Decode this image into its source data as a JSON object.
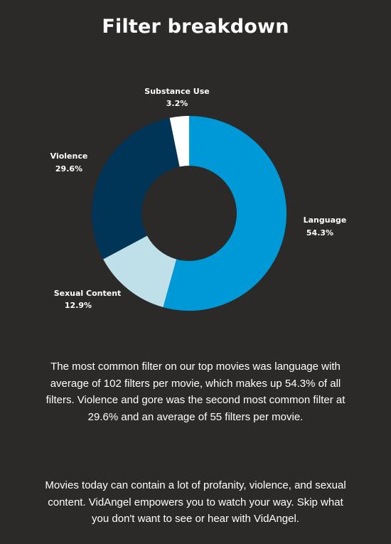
{
  "title": "Filter breakdown",
  "chart_data": {
    "type": "pie",
    "title": "Filter breakdown",
    "slices": [
      {
        "name": "Language",
        "pct_label": "54.3%",
        "value": 54.3,
        "color": "#0099d8"
      },
      {
        "name": "Sexual Content",
        "pct_label": "12.9%",
        "value": 12.9,
        "color": "#bfe0e9"
      },
      {
        "name": "Violence",
        "pct_label": "29.6%",
        "value": 29.6,
        "color": "#013557"
      },
      {
        "name": "Substance Use",
        "pct_label": "3.2%",
        "value": 3.2,
        "color": "#ffffff"
      }
    ]
  },
  "paragraphs": {
    "summary": "The most common filter on our top movies was language with average of 102 filters per movie, which makes up 54.3% of all filters. Violence and gore was the second most common filter at 29.6% and an average of 55 filters per movie.",
    "promo": "Movies today can contain a lot of profanity, violence, and sexual content. VidAngel empowers you to watch your way. Skip what you don't want to see or hear with VidAngel."
  }
}
